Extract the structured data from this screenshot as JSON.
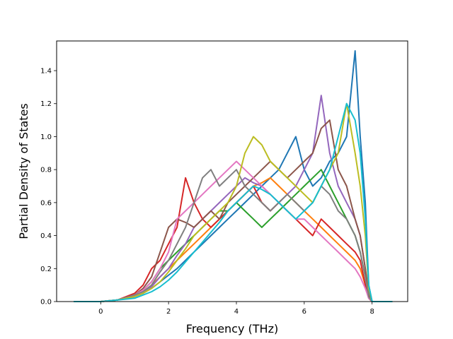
{
  "chart_data": {
    "type": "line",
    "title": "",
    "xlabel": "Frequency (THz)",
    "ylabel": "Partial Density of States",
    "xlim": [
      -1.3,
      9.05
    ],
    "ylim": [
      0,
      1.58
    ],
    "xticks": [
      0,
      2,
      4,
      6,
      8
    ],
    "xtick_labels": [
      "0",
      "2",
      "4",
      "6",
      "8"
    ],
    "yticks": [
      0.0,
      0.2,
      0.4,
      0.6,
      0.8,
      1.0,
      1.2,
      1.4
    ],
    "ytick_labels": [
      "0.0",
      "0.2",
      "0.4",
      "0.6",
      "0.8",
      "1.0",
      "1.2",
      "1.4"
    ],
    "grid": false,
    "legend": "none",
    "colors": [
      "#1f77b4",
      "#ff7f0e",
      "#2ca02c",
      "#d62728",
      "#9467bd",
      "#8c564b",
      "#e377c2",
      "#7f7f7f",
      "#bcbd22",
      "#17becf"
    ],
    "x": [
      -0.8,
      0.0,
      0.5,
      1.0,
      1.25,
      1.5,
      1.75,
      2.0,
      2.25,
      2.5,
      2.75,
      3.0,
      3.25,
      3.5,
      3.75,
      4.0,
      4.25,
      4.5,
      4.75,
      5.0,
      5.25,
      5.5,
      5.75,
      6.0,
      6.25,
      6.5,
      6.75,
      7.0,
      7.25,
      7.5,
      7.65,
      7.8,
      7.9,
      8.0,
      8.6
    ],
    "series": [
      {
        "values": [
          0,
          0,
          0.01,
          0.03,
          0.05,
          0.08,
          0.12,
          0.16,
          0.2,
          0.25,
          0.3,
          0.35,
          0.4,
          0.45,
          0.5,
          0.55,
          0.6,
          0.65,
          0.7,
          0.75,
          0.8,
          0.9,
          1.0,
          0.8,
          0.7,
          0.75,
          0.85,
          0.9,
          1.0,
          1.52,
          1.0,
          0.6,
          0.1,
          0,
          0
        ]
      },
      {
        "values": [
          0,
          0,
          0.01,
          0.04,
          0.06,
          0.1,
          0.15,
          0.2,
          0.25,
          0.3,
          0.35,
          0.4,
          0.45,
          0.5,
          0.55,
          0.6,
          0.65,
          0.7,
          0.72,
          0.75,
          0.7,
          0.65,
          0.6,
          0.55,
          0.5,
          0.45,
          0.4,
          0.35,
          0.3,
          0.25,
          0.2,
          0.1,
          0.02,
          0,
          0
        ]
      },
      {
        "values": [
          0,
          0,
          0.01,
          0.04,
          0.07,
          0.12,
          0.2,
          0.25,
          0.3,
          0.35,
          0.4,
          0.45,
          0.5,
          0.55,
          0.55,
          0.6,
          0.55,
          0.5,
          0.45,
          0.5,
          0.55,
          0.6,
          0.65,
          0.7,
          0.75,
          0.8,
          0.7,
          0.6,
          0.5,
          0.4,
          0.3,
          0.15,
          0.03,
          0,
          0
        ]
      },
      {
        "values": [
          0,
          0,
          0.01,
          0.05,
          0.1,
          0.2,
          0.25,
          0.35,
          0.45,
          0.75,
          0.6,
          0.5,
          0.45,
          0.5,
          0.55,
          0.6,
          0.65,
          0.7,
          0.6,
          0.55,
          0.6,
          0.55,
          0.5,
          0.45,
          0.4,
          0.5,
          0.45,
          0.4,
          0.35,
          0.3,
          0.25,
          0.1,
          0.02,
          0,
          0
        ]
      },
      {
        "values": [
          0,
          0,
          0.01,
          0.03,
          0.05,
          0.09,
          0.15,
          0.2,
          0.28,
          0.35,
          0.45,
          0.5,
          0.55,
          0.6,
          0.65,
          0.7,
          0.75,
          0.72,
          0.7,
          0.65,
          0.6,
          0.65,
          0.7,
          0.8,
          0.9,
          1.25,
          0.9,
          0.7,
          0.6,
          0.5,
          0.4,
          0.2,
          0.05,
          0,
          0
        ]
      },
      {
        "values": [
          0,
          0,
          0.01,
          0.04,
          0.08,
          0.15,
          0.3,
          0.45,
          0.5,
          0.48,
          0.45,
          0.5,
          0.55,
          0.5,
          0.6,
          0.65,
          0.7,
          0.75,
          0.8,
          0.85,
          0.8,
          0.75,
          0.8,
          0.85,
          0.9,
          1.05,
          1.1,
          0.8,
          0.7,
          0.5,
          0.4,
          0.2,
          0.04,
          0,
          0
        ]
      },
      {
        "values": [
          0,
          0,
          0.01,
          0.04,
          0.07,
          0.12,
          0.2,
          0.3,
          0.5,
          0.55,
          0.6,
          0.65,
          0.7,
          0.75,
          0.8,
          0.85,
          0.8,
          0.75,
          0.7,
          0.65,
          0.6,
          0.55,
          0.5,
          0.5,
          0.45,
          0.4,
          0.35,
          0.3,
          0.25,
          0.2,
          0.15,
          0.08,
          0.02,
          0,
          0
        ]
      },
      {
        "values": [
          0,
          0,
          0.01,
          0.04,
          0.06,
          0.1,
          0.18,
          0.25,
          0.35,
          0.45,
          0.6,
          0.75,
          0.8,
          0.7,
          0.75,
          0.8,
          0.7,
          0.65,
          0.6,
          0.55,
          0.6,
          0.65,
          0.6,
          0.55,
          0.6,
          0.7,
          0.65,
          0.55,
          0.5,
          0.4,
          0.3,
          0.15,
          0.03,
          0,
          0
        ]
      },
      {
        "values": [
          0,
          0,
          0.01,
          0.03,
          0.05,
          0.08,
          0.12,
          0.18,
          0.25,
          0.32,
          0.4,
          0.45,
          0.5,
          0.55,
          0.6,
          0.7,
          0.9,
          1.0,
          0.95,
          0.85,
          0.8,
          0.75,
          0.7,
          0.65,
          0.6,
          0.7,
          0.8,
          0.9,
          1.2,
          0.9,
          0.7,
          0.4,
          0.08,
          0,
          0
        ]
      },
      {
        "values": [
          0,
          0,
          0.01,
          0.02,
          0.04,
          0.06,
          0.09,
          0.13,
          0.18,
          0.24,
          0.3,
          0.36,
          0.42,
          0.48,
          0.55,
          0.6,
          0.65,
          0.7,
          0.68,
          0.65,
          0.6,
          0.55,
          0.5,
          0.55,
          0.6,
          0.7,
          0.8,
          1.0,
          1.2,
          1.1,
          0.9,
          0.5,
          0.1,
          0,
          0
        ]
      }
    ]
  }
}
